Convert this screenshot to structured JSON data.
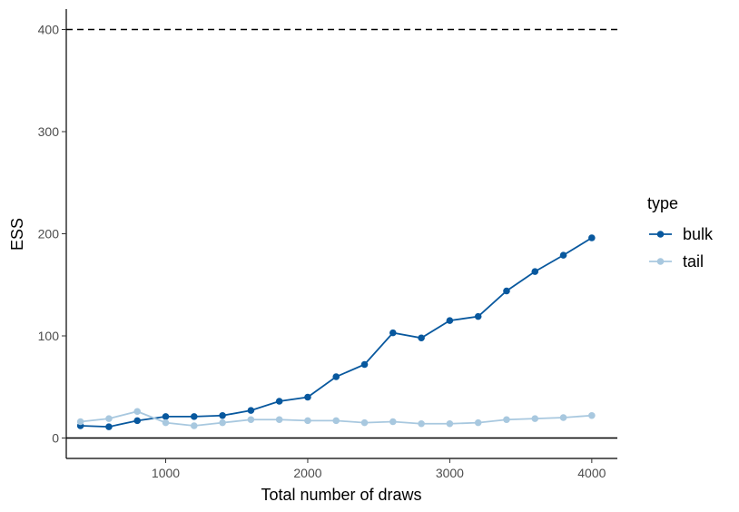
{
  "chart_data": {
    "type": "line",
    "xlabel": "Total number of draws",
    "ylabel": "ESS",
    "xlim": [
      300,
      4180
    ],
    "ylim": [
      -20,
      420
    ],
    "x_ticks": [
      1000,
      2000,
      3000,
      4000
    ],
    "y_ticks": [
      0,
      100,
      200,
      300,
      400
    ],
    "x_tick_labels": [
      "1000",
      "2000",
      "3000",
      "4000"
    ],
    "y_tick_labels": [
      "0",
      "100",
      "200",
      "300",
      "400"
    ],
    "reference_lines": [
      {
        "y": 400,
        "style": "dashed"
      },
      {
        "y": 0,
        "style": "solid"
      }
    ],
    "grid": false,
    "legend": {
      "title": "type",
      "position": "right"
    },
    "x": [
      400,
      600,
      800,
      1000,
      1200,
      1400,
      1600,
      1800,
      2000,
      2200,
      2400,
      2600,
      2800,
      3000,
      3200,
      3400,
      3600,
      3800,
      4000
    ],
    "series": [
      {
        "name": "bulk",
        "color": "#08589e",
        "values": [
          12,
          11,
          17,
          21,
          21,
          22,
          27,
          36,
          40,
          60,
          72,
          103,
          98,
          115,
          119,
          144,
          163,
          179,
          196
        ]
      },
      {
        "name": "tail",
        "color": "#a8c8df",
        "values": [
          16,
          19,
          26,
          15,
          12,
          15,
          18,
          18,
          17,
          17,
          15,
          16,
          14,
          14,
          15,
          18,
          19,
          20,
          22
        ]
      }
    ]
  }
}
